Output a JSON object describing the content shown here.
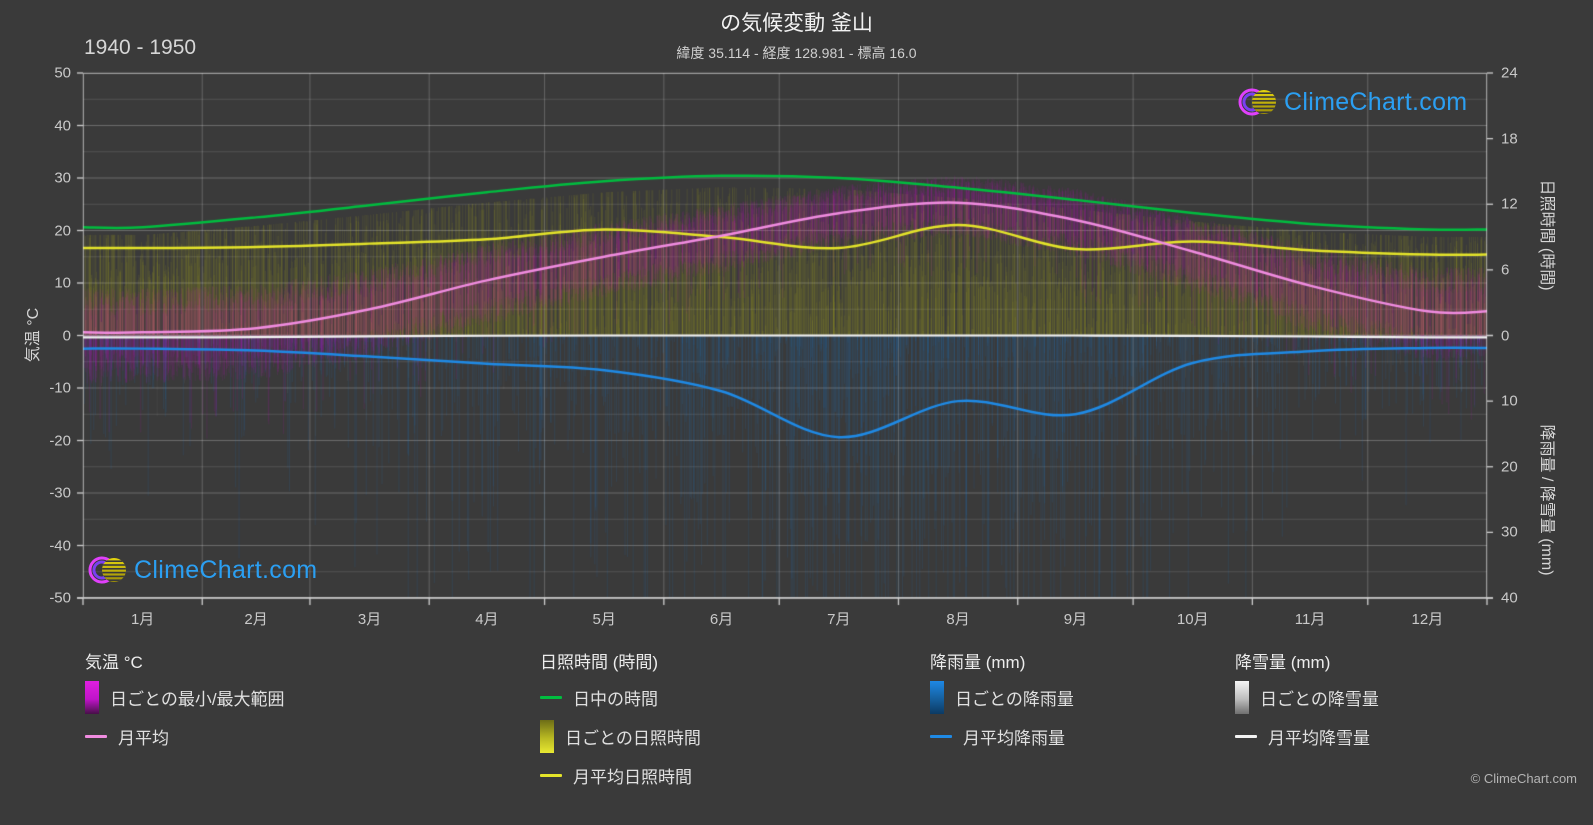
{
  "meta": {
    "title": "の気候変動 釜山",
    "subtitle": "緯度 35.114 - 経度 128.981 - 標高 16.0",
    "period": "1940 - 1950",
    "brand": "ClimeChart.com",
    "copyright": "© ClimeChart.com"
  },
  "axes": {
    "temp": {
      "label": "気温 °C",
      "min": -50,
      "max": 50,
      "ticks": [
        50,
        40,
        30,
        20,
        10,
        0,
        -10,
        -20,
        -30,
        -40,
        -50
      ]
    },
    "sunshine": {
      "label": "日照時間 (時間)",
      "min": 0,
      "max": 24,
      "ticks": [
        24,
        18,
        12,
        6,
        0
      ]
    },
    "precip": {
      "label": "降雨量 / 降雪量 (mm)",
      "min": 0,
      "max": 40,
      "ticks": [
        0,
        10,
        20,
        30,
        40
      ]
    },
    "months": {
      "labels": [
        "1月",
        "2月",
        "3月",
        "4月",
        "5月",
        "6月",
        "7月",
        "8月",
        "9月",
        "10月",
        "11月",
        "12月"
      ]
    }
  },
  "legend": {
    "groups": [
      {
        "title": "気温 °C",
        "items": [
          {
            "shape": "bar",
            "label": "日ごとの最小/最大範囲"
          },
          {
            "shape": "line",
            "label": "月平均"
          }
        ]
      },
      {
        "title": "日照時間 (時間)",
        "items": [
          {
            "shape": "line",
            "label": "日中の時間"
          },
          {
            "shape": "bar",
            "label": "日ごとの日照時間"
          },
          {
            "shape": "line",
            "label": "月平均日照時間"
          }
        ]
      },
      {
        "title": "降雨量 (mm)",
        "items": [
          {
            "shape": "bar",
            "label": "日ごとの降雨量"
          },
          {
            "shape": "line",
            "label": "月平均降雨量"
          }
        ]
      },
      {
        "title": "降雪量 (mm)",
        "items": [
          {
            "shape": "bar",
            "label": "日ごとの降雪量"
          },
          {
            "shape": "line",
            "label": "月平均降雪量"
          }
        ]
      }
    ]
  },
  "colors": {
    "background": "#3a3a3a",
    "daylight_line": "#00bd3f",
    "sunshine_line": "#e4e42a",
    "temp_line": "#f08ce0",
    "rain_line": "#1f8ae5",
    "snow_line": "#f2f2f2",
    "temp_bars": "rgba(205,10,205,0.11)",
    "sun_bars": "rgba(205,205,25,0.10)",
    "rain_bars": "rgba(30,120,205,0.13)",
    "snow_bars": "rgba(235,235,245,0.05)",
    "brand_blue": "#2b9ff2"
  },
  "chart_data": {
    "type": "line",
    "title": "の気候変動 釜山",
    "x_categories": [
      "1月",
      "2月",
      "3月",
      "4月",
      "5月",
      "6月",
      "7月",
      "8月",
      "9月",
      "10月",
      "11月",
      "12月"
    ],
    "ylim_temp_c": [
      -50,
      50
    ],
    "ylim_sunshine_h": [
      0,
      24
    ],
    "ylim_precip_mm": [
      0,
      40
    ],
    "grid": true,
    "legend_position": "bottom",
    "series": [
      {
        "name": "日中の時間",
        "axis": "sunshine_h",
        "style": "line",
        "color": "#00bd3f",
        "values": [
          9.9,
          10.8,
          11.9,
          13.1,
          14.1,
          14.6,
          14.4,
          13.5,
          12.4,
          11.2,
          10.2,
          9.7
        ]
      },
      {
        "name": "月平均日照時間",
        "axis": "sunshine_h",
        "style": "line",
        "color": "#e4e42a",
        "values": [
          8.0,
          8.1,
          8.4,
          8.8,
          9.7,
          9.0,
          8.0,
          10.1,
          7.9,
          8.6,
          7.8,
          7.4
        ]
      },
      {
        "name": "月平均",
        "axis": "temp_c",
        "style": "line",
        "color": "#f08ce0",
        "values": [
          0.6,
          1.4,
          5.0,
          10.5,
          15.0,
          19.0,
          23.3,
          25.3,
          22.0,
          16.0,
          9.5,
          4.6
        ]
      },
      {
        "name": "月平均降雨量",
        "axis": "rain_mm_per_day",
        "style": "line",
        "color": "#1f8ae5",
        "values": [
          2.0,
          2.3,
          3.2,
          4.3,
          5.3,
          8.5,
          15.5,
          10.0,
          12.0,
          4.2,
          2.4,
          1.9
        ]
      },
      {
        "name": "月平均降雪量",
        "axis": "snow_mm_per_day",
        "style": "line",
        "color": "#f2f2f2",
        "values": [
          0.3,
          0.25,
          0.12,
          0.04,
          0,
          0,
          0,
          0,
          0,
          0.05,
          0.15,
          0.28
        ]
      }
    ],
    "daily_bands": {
      "temp_half_range_c": [
        7,
        7,
        6.5,
        6,
        5.5,
        5,
        4.5,
        4.5,
        5,
        5.5,
        6.5,
        7
      ],
      "month_day_bounds": [
        0,
        31,
        59,
        90,
        120,
        151,
        181,
        212,
        243,
        273,
        304,
        334,
        365
      ]
    }
  }
}
